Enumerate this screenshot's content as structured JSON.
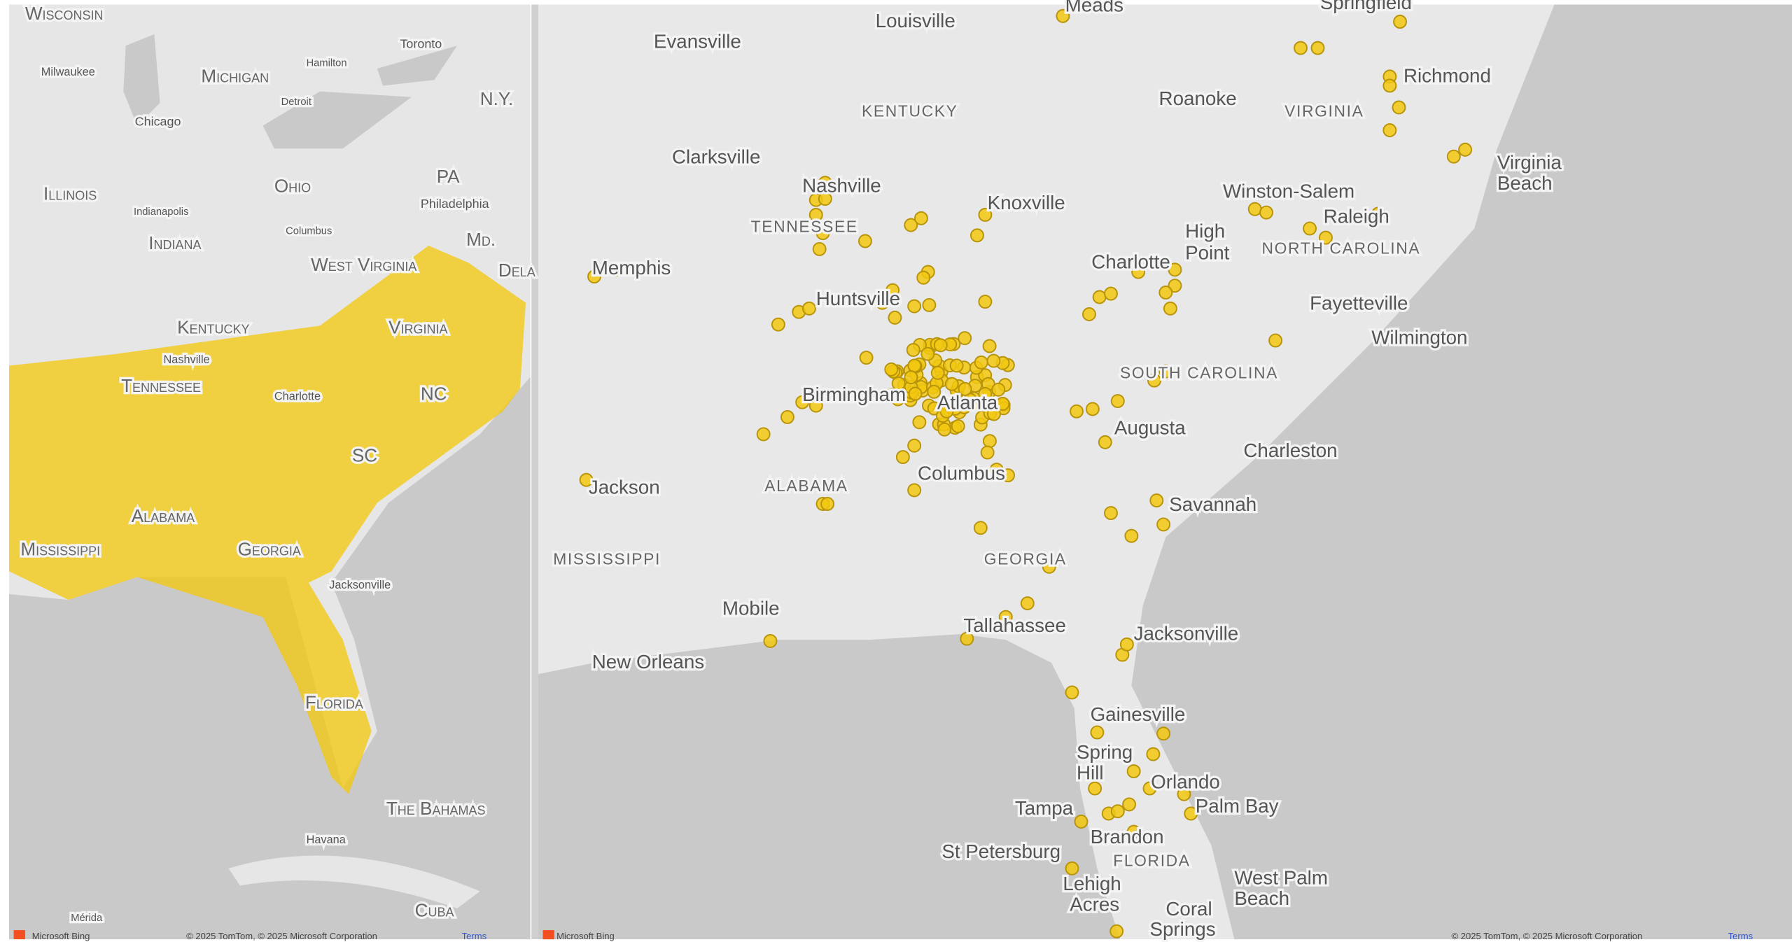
{
  "left_map": {
    "labels": [
      "Wisconsin",
      "Milwaukee",
      "Michigan",
      "Hamilton",
      "Toronto",
      "Detroit",
      "N.Y.",
      "Chicago",
      "Illinois",
      "Ohio",
      "PA",
      "Philadelphia",
      "Indianapolis",
      "Columbus",
      "Indiana",
      "Md.",
      "West Virginia",
      "Dela",
      "Kentucky",
      "Virginia",
      "Nashville",
      "Tennessee",
      "Charlotte",
      "NC",
      "SC",
      "Alabama",
      "Mississippi",
      "Georgia",
      "Jacksonville",
      "Florida",
      "The Bahamas",
      "Havana",
      "Mérida",
      "Cuba"
    ],
    "attribution": "Microsoft Bing",
    "copyright": "© 2025 TomTom, © 2025 Microsoft Corporation",
    "terms": "Terms"
  },
  "right_map": {
    "labels": [
      "Meads",
      "Louisville",
      "Springfield",
      "Evansville",
      "Richmond",
      "KENTUCKY",
      "Roanoke",
      "VIRGINIA",
      "Clarksville",
      "Virginia",
      "Beach",
      "Nashville",
      "Winston-Salem",
      "Knoxville",
      "TENNESSEE",
      "High",
      "Point",
      "Raleigh",
      "Memphis",
      "Charlotte",
      "NORTH CAROLINA",
      "Huntsville",
      "Fayetteville",
      "Wilmington",
      "SOUTH CAROLINA",
      "Birmingham",
      "Atlanta",
      "Augusta",
      "Charleston",
      "Jackson",
      "ALABAMA",
      "Columbus",
      "Savannah",
      "MISSISSIPPI",
      "GEORGIA",
      "Mobile",
      "Tallahassee",
      "Jacksonville",
      "New Orleans",
      "Gainesville",
      "Spring",
      "Hill",
      "Orlando",
      "Tampa",
      "Palm Bay",
      "Brandon",
      "St Petersburg",
      "FLORIDA",
      "Lehigh",
      "Acres",
      "West Palm",
      "Beach",
      "Coral",
      "Springs"
    ],
    "attribution": "Microsoft Bing",
    "copyright": "© 2025 TomTom, © 2025 Microsoft Corporation",
    "terms": "Terms"
  }
}
